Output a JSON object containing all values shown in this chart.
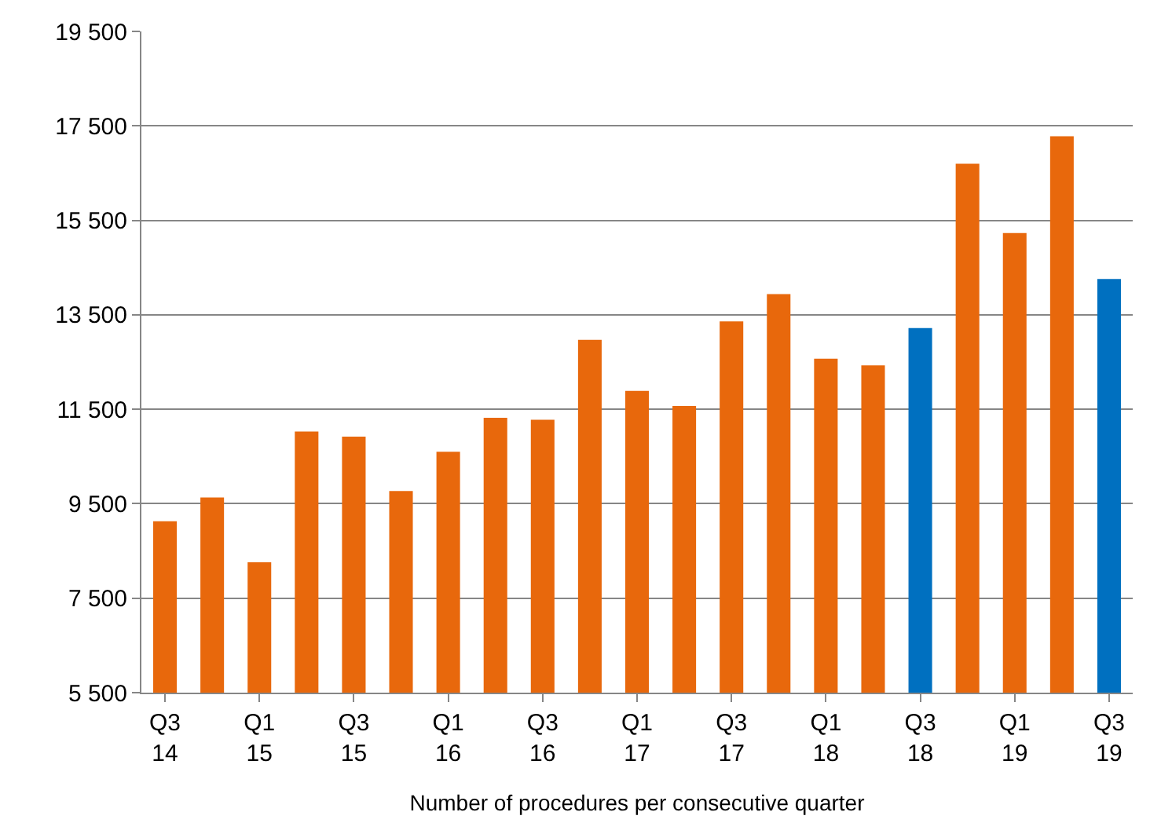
{
  "chart_data": {
    "type": "bar",
    "xlabel": "Number of procedures per consecutive quarter",
    "categories": [
      "Q3\n14",
      null,
      "Q1\n15",
      null,
      "Q3\n15",
      null,
      "Q1\n16",
      null,
      "Q3\n16",
      null,
      "Q1\n17",
      null,
      "Q3\n17",
      null,
      "Q1\n18",
      null,
      "Q3\n18",
      null,
      "Q1\n19",
      null,
      "Q3\n19"
    ],
    "values": [
      9130,
      9630,
      8260,
      11030,
      10920,
      9770,
      10600,
      11320,
      11280,
      12970,
      11890,
      11570,
      13360,
      13940,
      12570,
      12430,
      13220,
      16700,
      15230,
      17280,
      14260
    ],
    "colors": [
      "#e8680c",
      "#e8680c",
      "#e8680c",
      "#e8680c",
      "#e8680c",
      "#e8680c",
      "#e8680c",
      "#e8680c",
      "#e8680c",
      "#e8680c",
      "#e8680c",
      "#e8680c",
      "#e8680c",
      "#e8680c",
      "#e8680c",
      "#e8680c",
      "#0070c0",
      "#e8680c",
      "#e8680c",
      "#e8680c",
      "#0070c0"
    ],
    "ylim": [
      5500,
      19500
    ],
    "yticks": [
      {
        "value": 5500,
        "label": "5 500"
      },
      {
        "value": 7500,
        "label": "7 500"
      },
      {
        "value": 9500,
        "label": "9 500"
      },
      {
        "value": 11500,
        "label": "11 500"
      },
      {
        "value": 13500,
        "label": "13 500"
      },
      {
        "value": 15500,
        "label": "15 500"
      },
      {
        "value": 17500,
        "label": "17 500"
      },
      {
        "value": 19500,
        "label": "19 500"
      }
    ],
    "grid": "y"
  }
}
